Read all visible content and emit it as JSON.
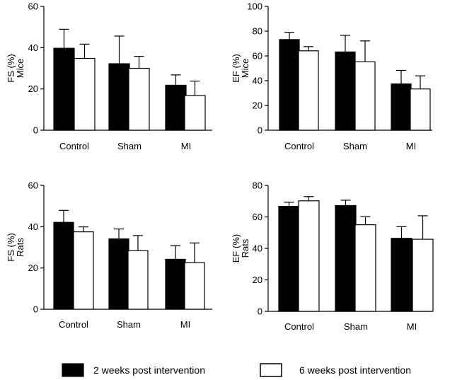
{
  "chart_data": [
    {
      "type": "bar",
      "ylabel": [
        "FS (%)",
        "Mice"
      ],
      "ylim": [
        0,
        60
      ],
      "yticks": [
        0,
        20,
        40,
        60
      ],
      "categories": [
        "Control",
        "Sham",
        "MI"
      ],
      "series": [
        {
          "name": "2 weeks post intervention",
          "values": [
            39.7,
            32.2,
            21.8
          ],
          "errors": [
            9.2,
            13.4,
            5.0
          ]
        },
        {
          "name": "6 weeks post intervention",
          "values": [
            34.8,
            30.0,
            16.8
          ],
          "errors": [
            6.9,
            5.8,
            7.0
          ]
        }
      ]
    },
    {
      "type": "bar",
      "ylabel": [
        "EF (%)",
        "Mice"
      ],
      "ylim": [
        0,
        100
      ],
      "yticks": [
        0,
        20,
        40,
        60,
        80,
        100
      ],
      "categories": [
        "Control",
        "Sham",
        "MI"
      ],
      "series": [
        {
          "name": "2 weeks post intervention",
          "values": [
            73.2,
            63.2,
            37.4
          ],
          "errors": [
            5.9,
            13.4,
            10.9
          ]
        },
        {
          "name": "6 weeks post intervention",
          "values": [
            64.1,
            55.2,
            33.3
          ],
          "errors": [
            3.4,
            16.9,
            10.6
          ]
        }
      ]
    },
    {
      "type": "bar",
      "ylabel": [
        "FS (%)",
        "Rats"
      ],
      "ylim": [
        0,
        60
      ],
      "yticks": [
        0,
        20,
        40,
        60
      ],
      "categories": [
        "Control",
        "Sham",
        "MI"
      ],
      "series": [
        {
          "name": "2 weeks post intervention",
          "values": [
            42.1,
            34.1,
            24.2
          ],
          "errors": [
            5.8,
            4.8,
            6.6
          ]
        },
        {
          "name": "6 weeks post intervention",
          "values": [
            37.5,
            28.4,
            22.6
          ],
          "errors": [
            2.4,
            7.3,
            9.5
          ]
        }
      ]
    },
    {
      "type": "bar",
      "ylabel": [
        "EF (%)",
        "Rats"
      ],
      "ylim": [
        0,
        80
      ],
      "yticks": [
        0,
        20,
        40,
        60,
        80
      ],
      "categories": [
        "Control",
        "Sham",
        "MI"
      ],
      "series": [
        {
          "name": "2 weeks post intervention",
          "values": [
            66.7,
            67.2,
            46.4
          ],
          "errors": [
            2.6,
            3.4,
            7.4
          ]
        },
        {
          "name": "6 weeks post intervention",
          "values": [
            70.2,
            55.0,
            45.8
          ],
          "errors": [
            2.7,
            5.1,
            14.9
          ]
        }
      ]
    }
  ],
  "legend": {
    "items": [
      {
        "label": "2 weeks post intervention",
        "color": "#000000"
      },
      {
        "label": "6 weeks post intervention",
        "color": "#ffffff"
      }
    ]
  },
  "colors": {
    "series_0": "#000000",
    "series_1": "#ffffff",
    "stroke": "#000000"
  }
}
